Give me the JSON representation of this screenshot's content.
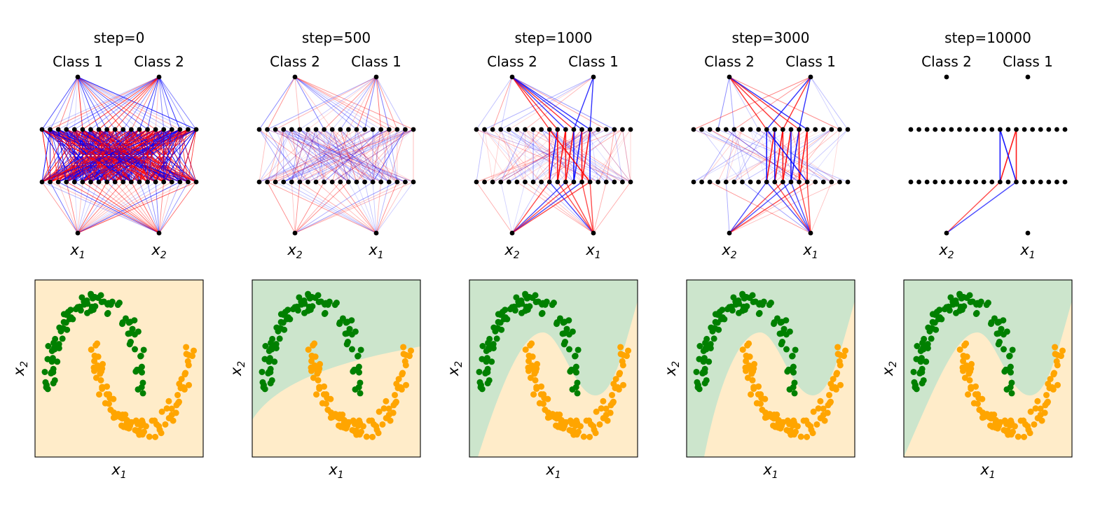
{
  "figure": {
    "panels": [
      {
        "title": "step=0",
        "output_labels": [
          "Class 1",
          "Class 2"
        ],
        "input_labels": [
          {
            "base": "x",
            "sub": "1"
          },
          {
            "base": "x",
            "sub": "2"
          }
        ],
        "density": 60,
        "strength": 1.0,
        "focus": [],
        "boundary_depth": null,
        "boundary_side": "none"
      },
      {
        "title": "step=500",
        "output_labels": [
          "Class 2",
          "Class 1"
        ],
        "input_labels": [
          {
            "base": "x",
            "sub": "2"
          },
          {
            "base": "x",
            "sub": "1"
          }
        ],
        "density": 35,
        "strength": 0.55,
        "focus": [],
        "boundary_depth": 0.6,
        "boundary_side": "slope"
      },
      {
        "title": "step=1000",
        "output_labels": [
          "Class 2",
          "Class 1"
        ],
        "input_labels": [
          {
            "base": "x",
            "sub": "2"
          },
          {
            "base": "x",
            "sub": "1"
          }
        ],
        "density": 22,
        "strength": 0.45,
        "focus": [
          9,
          10,
          11,
          12,
          13,
          14
        ],
        "boundary_depth": 1.0,
        "boundary_side": "wave"
      },
      {
        "title": "step=3000",
        "output_labels": [
          "Class 2",
          "Class 1"
        ],
        "input_labels": [
          {
            "base": "x",
            "sub": "2"
          },
          {
            "base": "x",
            "sub": "1"
          }
        ],
        "density": 12,
        "strength": 0.5,
        "focus": [
          9,
          10,
          11,
          12,
          13,
          14
        ],
        "boundary_depth": 1.0,
        "boundary_side": "wave"
      },
      {
        "title": "step=10000",
        "output_labels": [
          "Class 2",
          "Class 1"
        ],
        "input_labels": [
          {
            "base": "x",
            "sub": "2"
          },
          {
            "base": "x",
            "sub": "1"
          }
        ],
        "density": 0,
        "strength": 0.8,
        "focus": [
          11,
          13
        ],
        "boundary_depth": 1.0,
        "boundary_side": "wave"
      }
    ],
    "bottom_xlabel": {
      "base": "x",
      "sub": "1"
    },
    "bottom_ylabel": {
      "base": "x",
      "sub": "2"
    },
    "colors": {
      "positive_edge": "#0000ff",
      "negative_edge": "#ff0000",
      "node": "#000000",
      "class_green_point": "#008000",
      "class_orange_point": "#ffa500",
      "region_green": "#cce5cc",
      "region_orange": "#ffecc9"
    },
    "hidden_neurons_per_layer": 20
  }
}
